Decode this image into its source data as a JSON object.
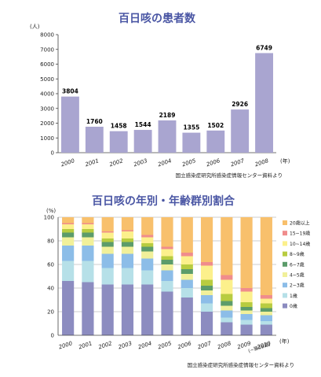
{
  "chart_data": [
    {
      "type": "bar",
      "title": "百日咳の患者数",
      "unit": "(人)",
      "x_unit": "(年)",
      "source": "国立感染症研究所感染症情報センター資料より",
      "categories": [
        "2000",
        "2001",
        "2002",
        "2003",
        "2004",
        "2005",
        "2006",
        "2007",
        "2008"
      ],
      "values": [
        3804,
        1760,
        1458,
        1544,
        2189,
        1355,
        1502,
        2926,
        6749
      ],
      "ylim": [
        0,
        8000
      ],
      "yticks": [
        "0",
        "1000",
        "2000",
        "3000",
        "4000",
        "5000",
        "6000",
        "7000",
        "8000"
      ],
      "grid": false,
      "color": "#a9a5d0"
    },
    {
      "type": "bar",
      "stacked": true,
      "title": "百日咳の年別・年齢群別割合",
      "unit": "(%)",
      "x_unit": "(年)",
      "note": "(~第19週)",
      "source": "国立感染症研究所感染症情報センター資料より",
      "categories": [
        "2000",
        "2001",
        "2002",
        "2003",
        "2004",
        "2005",
        "2006",
        "2007",
        "2008",
        "2009",
        "2010"
      ],
      "ylim": [
        0,
        100
      ],
      "yticks": [
        "0",
        "20",
        "40",
        "60",
        "80",
        "100"
      ],
      "grid": true,
      "legend_position": "right",
      "series": [
        {
          "name": "0歳",
          "color": "#8c8cc0",
          "values": [
            46,
            45,
            43,
            43,
            43,
            37,
            32,
            20,
            11,
            9,
            9
          ]
        },
        {
          "name": "1歳",
          "color": "#b6e0e8",
          "values": [
            17,
            18,
            14,
            14,
            12,
            9,
            8,
            7,
            4,
            4,
            3
          ]
        },
        {
          "name": "2~3歳",
          "color": "#8cbde8",
          "values": [
            13,
            13,
            12,
            12,
            10,
            9,
            7,
            7,
            6,
            5,
            5
          ]
        },
        {
          "name": "4~5歳",
          "color": "#f1f09a",
          "values": [
            7,
            7,
            6,
            6,
            6,
            5,
            5,
            4,
            4,
            3,
            3
          ]
        },
        {
          "name": "6~7歳",
          "color": "#5c9c6a",
          "values": [
            4,
            4,
            4,
            4,
            4,
            4,
            4,
            4,
            4,
            3,
            3
          ]
        },
        {
          "name": "8~9歳",
          "color": "#b8cc40",
          "values": [
            3,
            3,
            3,
            3,
            3,
            3,
            4,
            5,
            6,
            4,
            4
          ]
        },
        {
          "name": "10~14歳",
          "color": "#fcf08c",
          "values": [
            4,
            4,
            5,
            6,
            5,
            6,
            7,
            12,
            12,
            9,
            4
          ]
        },
        {
          "name": "15~19歳",
          "color": "#f08c8c",
          "values": [
            1,
            1,
            1,
            1,
            2,
            2,
            3,
            3,
            4,
            3,
            3
          ]
        },
        {
          "name": "20歳以上",
          "color": "#f8c06c",
          "values": [
            5,
            5,
            12,
            11,
            15,
            25,
            30,
            38,
            49,
            60,
            66
          ]
        }
      ]
    }
  ]
}
